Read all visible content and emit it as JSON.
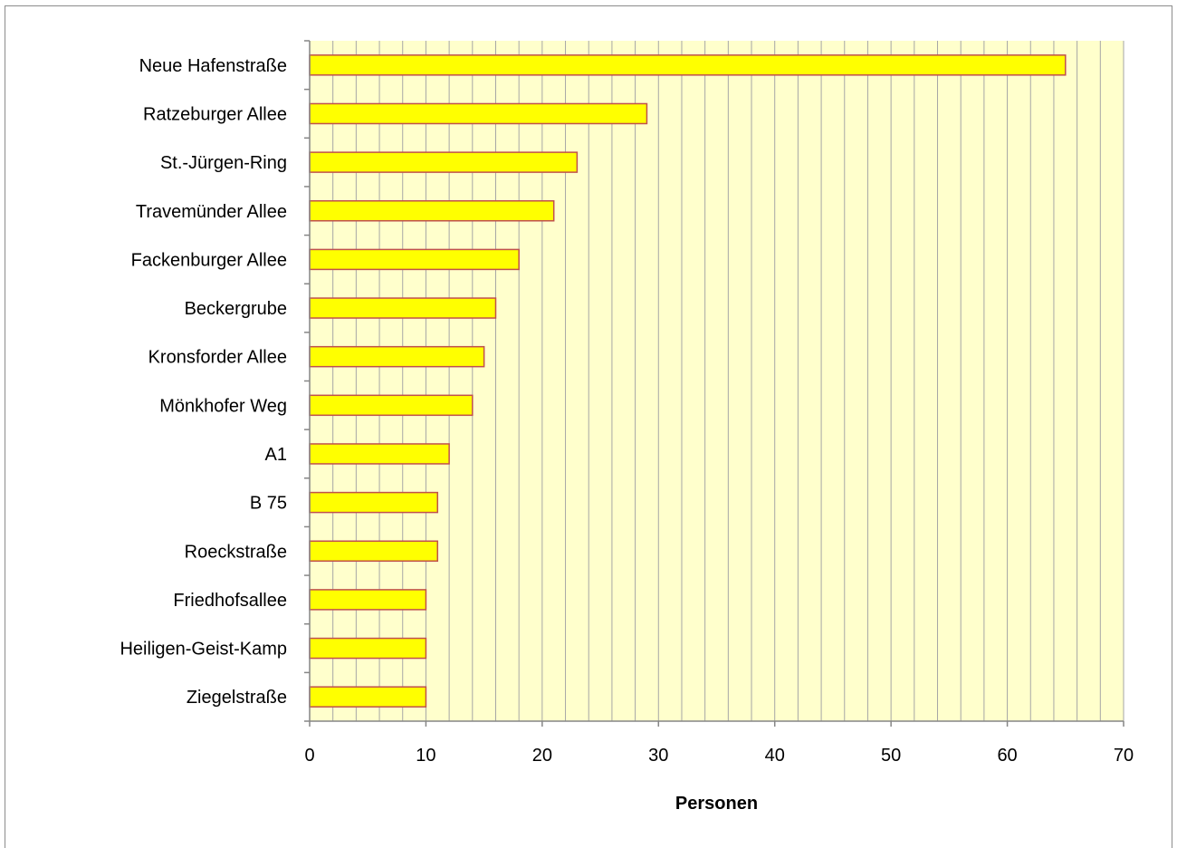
{
  "chart_data": {
    "type": "bar",
    "orientation": "horizontal",
    "categories": [
      "Neue Hafenstraße",
      "Ratzeburger Allee",
      "St.-Jürgen-Ring",
      "Travemünder Allee",
      "Fackenburger Allee",
      "Beckergrube",
      "Kronsforder Allee",
      "Mönkhofer Weg",
      "A1",
      "B 75",
      "Roeckstraße",
      "Friedhofsallee",
      "Heiligen-Geist-Kamp",
      "Ziegelstraße"
    ],
    "values": [
      65,
      29,
      23,
      21,
      18,
      16,
      15,
      14,
      12,
      11,
      11,
      10,
      10,
      10
    ],
    "title": "",
    "xlabel": "Personen",
    "ylabel": "",
    "xlim": [
      0,
      70
    ],
    "xticks": [
      0,
      10,
      20,
      30,
      40,
      50,
      60,
      70
    ],
    "grid": true,
    "legend": "none",
    "colors": {
      "bar_fill": "#ffff00",
      "bar_stroke": "#c0504d",
      "plot_background": "#ffffcc",
      "grid": "#a6a6a6",
      "axis": "#868686"
    }
  }
}
